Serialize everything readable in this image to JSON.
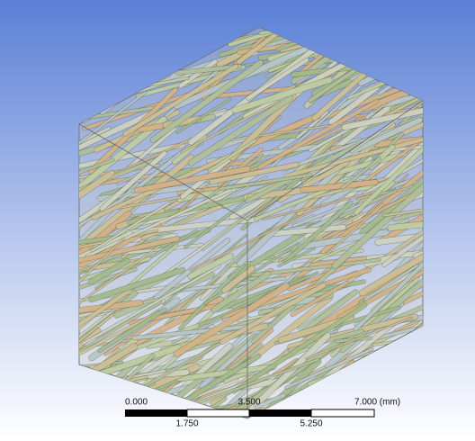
{
  "scale_bar": {
    "top_labels": [
      "0.000",
      "3.500",
      "7.000 (mm)"
    ],
    "bottom_labels": [
      "1.750",
      "5.250"
    ]
  }
}
